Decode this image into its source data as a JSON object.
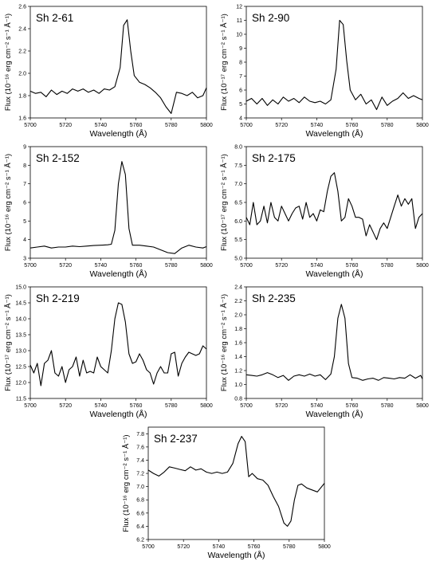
{
  "chart_data": [
    {
      "type": "line",
      "title": "Sh 2-61",
      "xlabel": "Wavelength (Å)",
      "ylabel": "Flux (10⁻¹⁶ erg cm⁻² s⁻¹ Å⁻¹)",
      "xlim": [
        5700,
        5800
      ],
      "ylim": [
        1.6,
        2.6
      ],
      "xticks": [
        "5700",
        "5720",
        "5740",
        "5760",
        "5780",
        "5800"
      ],
      "yticks": [
        "1.6",
        "1.8",
        "2.0",
        "2.2",
        "2.4",
        "2.6"
      ],
      "x": [
        5700,
        5703,
        5706,
        5709,
        5712,
        5715,
        5718,
        5721,
        5724,
        5727,
        5730,
        5733,
        5736,
        5739,
        5742,
        5745,
        5748,
        5751,
        5753,
        5755,
        5757,
        5759,
        5762,
        5765,
        5768,
        5771,
        5774,
        5777,
        5780,
        5783,
        5786,
        5789,
        5792,
        5795,
        5798,
        5800
      ],
      "y": [
        1.84,
        1.82,
        1.83,
        1.79,
        1.85,
        1.81,
        1.84,
        1.82,
        1.86,
        1.84,
        1.86,
        1.83,
        1.85,
        1.82,
        1.86,
        1.85,
        1.88,
        2.05,
        2.43,
        2.48,
        2.2,
        1.98,
        1.92,
        1.9,
        1.87,
        1.83,
        1.78,
        1.7,
        1.64,
        1.83,
        1.82,
        1.8,
        1.83,
        1.78,
        1.8,
        1.87
      ]
    },
    {
      "type": "line",
      "title": "Sh 2-90",
      "xlabel": "Wavelength (Å)",
      "ylabel": "Flux (10⁻¹⁷ erg cm⁻² s⁻¹ Å⁻¹)",
      "xlim": [
        5700,
        5800
      ],
      "ylim": [
        4,
        12
      ],
      "xticks": [
        "5700",
        "5720",
        "5740",
        "5760",
        "5780",
        "5800"
      ],
      "yticks": [
        "4",
        "5",
        "6",
        "7",
        "8",
        "9",
        "10",
        "11",
        "12"
      ],
      "x": [
        5700,
        5703,
        5706,
        5709,
        5712,
        5715,
        5718,
        5721,
        5724,
        5727,
        5730,
        5733,
        5736,
        5739,
        5742,
        5745,
        5748,
        5751,
        5753,
        5755,
        5757,
        5759,
        5762,
        5765,
        5768,
        5771,
        5774,
        5777,
        5780,
        5783,
        5786,
        5789,
        5792,
        5795,
        5798,
        5800
      ],
      "y": [
        5.2,
        5.4,
        5.0,
        5.4,
        4.9,
        5.3,
        5.0,
        5.5,
        5.2,
        5.4,
        5.1,
        5.5,
        5.2,
        5.1,
        5.2,
        5.0,
        5.3,
        7.5,
        11.0,
        10.7,
        8.1,
        6.0,
        5.3,
        5.7,
        5.0,
        5.3,
        4.6,
        5.5,
        4.9,
        5.2,
        5.4,
        5.8,
        5.4,
        5.6,
        5.4,
        5.3
      ]
    },
    {
      "type": "line",
      "title": "Sh 2-152",
      "xlabel": "Wavelength (Å)",
      "ylabel": "Flux (10⁻¹⁶ erg cm⁻² s⁻¹ Å⁻¹)",
      "xlim": [
        5700,
        5800
      ],
      "ylim": [
        3,
        9
      ],
      "xticks": [
        "5700",
        "5720",
        "5740",
        "5760",
        "5780",
        "5800"
      ],
      "yticks": [
        "3",
        "4",
        "5",
        "6",
        "7",
        "8",
        "9"
      ],
      "x": [
        5700,
        5704,
        5708,
        5712,
        5716,
        5720,
        5724,
        5728,
        5732,
        5736,
        5740,
        5744,
        5746,
        5748,
        5750,
        5752,
        5754,
        5756,
        5758,
        5762,
        5766,
        5770,
        5774,
        5778,
        5782,
        5786,
        5790,
        5794,
        5798,
        5800
      ],
      "y": [
        3.55,
        3.6,
        3.65,
        3.55,
        3.6,
        3.6,
        3.65,
        3.62,
        3.65,
        3.68,
        3.7,
        3.72,
        3.75,
        4.5,
        7.0,
        8.2,
        7.5,
        4.6,
        3.7,
        3.7,
        3.65,
        3.6,
        3.45,
        3.3,
        3.25,
        3.55,
        3.7,
        3.6,
        3.55,
        3.62
      ]
    },
    {
      "type": "line",
      "title": "Sh 2-175",
      "xlabel": "Wavelength (Å)",
      "ylabel": "Flux (10⁻¹⁷ erg cm⁻² s⁻¹ Å⁻¹)",
      "xlim": [
        5700,
        5800
      ],
      "ylim": [
        5.0,
        8.0
      ],
      "xticks": [
        "5700",
        "5720",
        "5740",
        "5760",
        "5780",
        "5800"
      ],
      "yticks": [
        "5.0",
        "5.5",
        "6.0",
        "6.5",
        "7.0",
        "7.5",
        "8.0"
      ],
      "x": [
        5700,
        5702,
        5704,
        5706,
        5708,
        5710,
        5712,
        5714,
        5716,
        5718,
        5720,
        5722,
        5724,
        5726,
        5728,
        5730,
        5732,
        5734,
        5736,
        5738,
        5740,
        5742,
        5744,
        5746,
        5748,
        5750,
        5752,
        5754,
        5756,
        5758,
        5760,
        5762,
        5764,
        5766,
        5768,
        5770,
        5772,
        5774,
        5776,
        5778,
        5780,
        5782,
        5784,
        5786,
        5788,
        5790,
        5792,
        5794,
        5796,
        5798,
        5800
      ],
      "y": [
        6.1,
        5.9,
        6.5,
        5.9,
        6.0,
        6.4,
        5.95,
        6.5,
        6.1,
        6.0,
        6.4,
        6.2,
        6.0,
        6.2,
        6.35,
        6.4,
        6.05,
        6.5,
        6.1,
        6.2,
        6.0,
        6.3,
        6.25,
        6.8,
        7.2,
        7.3,
        6.8,
        6.0,
        6.1,
        6.6,
        6.4,
        6.1,
        6.1,
        6.05,
        5.6,
        5.9,
        5.7,
        5.5,
        5.8,
        5.95,
        5.8,
        6.1,
        6.4,
        6.7,
        6.4,
        6.6,
        6.45,
        6.6,
        5.8,
        6.1,
        6.2
      ]
    },
    {
      "type": "line",
      "title": "Sh 2-219",
      "xlabel": "Wavelength (Å)",
      "ylabel": "Flux (10⁻¹⁷ erg cm⁻² s⁻¹ Å⁻¹)",
      "xlim": [
        5700,
        5800
      ],
      "ylim": [
        11.5,
        15.0
      ],
      "xticks": [
        "5700",
        "5720",
        "5740",
        "5760",
        "5780",
        "5800"
      ],
      "yticks": [
        "11.5",
        "12.0",
        "12.5",
        "13.0",
        "13.5",
        "14.0",
        "14.5",
        "15.0"
      ],
      "x": [
        5700,
        5702,
        5704,
        5706,
        5708,
        5710,
        5712,
        5714,
        5716,
        5718,
        5720,
        5722,
        5724,
        5726,
        5728,
        5730,
        5732,
        5734,
        5736,
        5738,
        5740,
        5742,
        5744,
        5746,
        5748,
        5750,
        5752,
        5754,
        5756,
        5758,
        5760,
        5762,
        5764,
        5766,
        5768,
        5770,
        5772,
        5774,
        5776,
        5778,
        5780,
        5782,
        5784,
        5786,
        5788,
        5790,
        5792,
        5794,
        5796,
        5798,
        5800
      ],
      "y": [
        12.55,
        12.3,
        12.6,
        11.9,
        12.6,
        12.7,
        13.0,
        12.3,
        12.2,
        12.5,
        12.0,
        12.4,
        12.5,
        12.8,
        12.2,
        12.7,
        12.3,
        12.35,
        12.3,
        12.8,
        12.5,
        12.4,
        12.3,
        13.0,
        14.0,
        14.5,
        14.45,
        13.9,
        12.9,
        12.6,
        12.65,
        12.9,
        12.7,
        12.4,
        12.3,
        11.95,
        12.3,
        12.5,
        12.3,
        12.3,
        12.9,
        12.95,
        12.2,
        12.6,
        12.8,
        12.95,
        12.9,
        12.85,
        12.9,
        13.15,
        13.05
      ]
    },
    {
      "type": "line",
      "title": "Sh 2-235",
      "xlabel": "Wavelength (Å)",
      "ylabel": "Flux (10⁻¹⁶ erg cm⁻² s⁻¹ Å⁻¹)",
      "xlim": [
        5700,
        5800
      ],
      "ylim": [
        0.8,
        2.4
      ],
      "xticks": [
        "5700",
        "5720",
        "5740",
        "5760",
        "5780",
        "5800"
      ],
      "yticks": [
        "0.8",
        "1.0",
        "1.2",
        "1.4",
        "1.6",
        "1.8",
        "2.0",
        "2.2",
        "2.4"
      ],
      "x": [
        5700,
        5703,
        5706,
        5709,
        5712,
        5715,
        5718,
        5721,
        5724,
        5727,
        5730,
        5733,
        5736,
        5739,
        5742,
        5745,
        5748,
        5750,
        5752,
        5754,
        5756,
        5758,
        5760,
        5763,
        5766,
        5769,
        5772,
        5775,
        5778,
        5781,
        5784,
        5787,
        5790,
        5793,
        5796,
        5799,
        5800
      ],
      "y": [
        1.14,
        1.13,
        1.12,
        1.14,
        1.17,
        1.14,
        1.1,
        1.13,
        1.06,
        1.12,
        1.14,
        1.12,
        1.15,
        1.12,
        1.14,
        1.07,
        1.15,
        1.4,
        1.95,
        2.15,
        1.95,
        1.3,
        1.1,
        1.09,
        1.06,
        1.08,
        1.09,
        1.06,
        1.1,
        1.09,
        1.08,
        1.1,
        1.09,
        1.14,
        1.09,
        1.13,
        1.08
      ]
    },
    {
      "type": "line",
      "title": "Sh 2-237",
      "xlabel": "Wavelength (Å)",
      "ylabel": "Flux (10⁻¹⁶ erg cm⁻² s⁻¹ Å⁻¹)",
      "xlim": [
        5700,
        5800
      ],
      "ylim": [
        6.2,
        7.9
      ],
      "xticks": [
        "5700",
        "5720",
        "5740",
        "5760",
        "5780",
        "5800"
      ],
      "yticks": [
        "6.2",
        "6.4",
        "6.6",
        "6.8",
        "7.0",
        "7.2",
        "7.4",
        "7.6",
        "7.8"
      ],
      "x": [
        5700,
        5703,
        5706,
        5709,
        5712,
        5715,
        5718,
        5721,
        5724,
        5727,
        5730,
        5733,
        5736,
        5739,
        5742,
        5745,
        5748,
        5751,
        5753,
        5755,
        5757,
        5759,
        5762,
        5765,
        5768,
        5771,
        5774,
        5777,
        5779,
        5781,
        5783,
        5785,
        5787,
        5790,
        5793,
        5796,
        5800
      ],
      "y": [
        7.25,
        7.2,
        7.16,
        7.22,
        7.3,
        7.28,
        7.26,
        7.24,
        7.3,
        7.25,
        7.27,
        7.22,
        7.2,
        7.22,
        7.2,
        7.22,
        7.35,
        7.65,
        7.76,
        7.68,
        7.15,
        7.2,
        7.12,
        7.1,
        7.02,
        6.85,
        6.7,
        6.45,
        6.4,
        6.48,
        6.8,
        7.02,
        7.04,
        6.98,
        6.95,
        6.92,
        7.05
      ]
    }
  ]
}
